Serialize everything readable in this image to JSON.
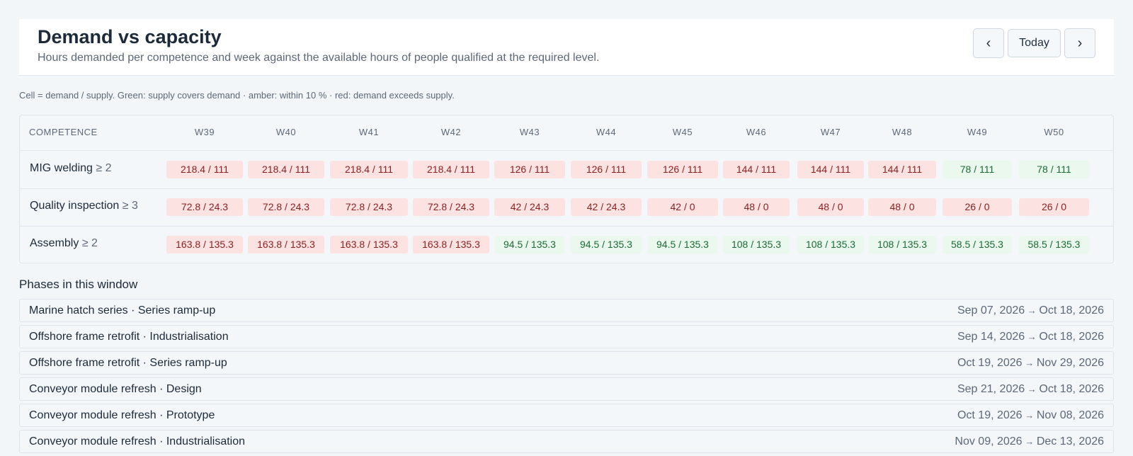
{
  "header": {
    "title": "Demand vs capacity",
    "subtitle": "Hours demanded per competence and week against the available hours of people qualified at the required level.",
    "prev_icon": "chevron-left-icon",
    "today_label": "Today",
    "next_icon": "chevron-right-icon"
  },
  "legend": "Cell = demand / supply. Green: supply covers demand · amber: within 10 % · red: demand exceeds supply.",
  "colors": {
    "red_bg": "#fde2e2",
    "red_text": "#8a1f1f",
    "green_bg": "#eaf8ee",
    "green_text": "#1b6b35"
  },
  "grid": {
    "first_header": "COMPETENCE",
    "weeks": [
      "W39",
      "W40",
      "W41",
      "W42",
      "W43",
      "W44",
      "W45",
      "W46",
      "W47",
      "W48",
      "W49",
      "W50"
    ],
    "rows": [
      {
        "name": "MIG welding",
        "level": "≥ 2",
        "cells": [
          {
            "v": "218.4 / 111",
            "s": "red"
          },
          {
            "v": "218.4 / 111",
            "s": "red"
          },
          {
            "v": "218.4 / 111",
            "s": "red"
          },
          {
            "v": "218.4 / 111",
            "s": "red"
          },
          {
            "v": "126 / 111",
            "s": "red"
          },
          {
            "v": "126 / 111",
            "s": "red"
          },
          {
            "v": "126 / 111",
            "s": "red"
          },
          {
            "v": "144 / 111",
            "s": "red"
          },
          {
            "v": "144 / 111",
            "s": "red"
          },
          {
            "v": "144 / 111",
            "s": "red"
          },
          {
            "v": "78 / 111",
            "s": "green"
          },
          {
            "v": "78 / 111",
            "s": "green"
          }
        ]
      },
      {
        "name": "Quality inspection",
        "level": "≥ 3",
        "cells": [
          {
            "v": "72.8 / 24.3",
            "s": "red"
          },
          {
            "v": "72.8 / 24.3",
            "s": "red"
          },
          {
            "v": "72.8 / 24.3",
            "s": "red"
          },
          {
            "v": "72.8 / 24.3",
            "s": "red"
          },
          {
            "v": "42 / 24.3",
            "s": "red"
          },
          {
            "v": "42 / 24.3",
            "s": "red"
          },
          {
            "v": "42 / 0",
            "s": "red"
          },
          {
            "v": "48 / 0",
            "s": "red"
          },
          {
            "v": "48 / 0",
            "s": "red"
          },
          {
            "v": "48 / 0",
            "s": "red"
          },
          {
            "v": "26 / 0",
            "s": "red"
          },
          {
            "v": "26 / 0",
            "s": "red"
          }
        ]
      },
      {
        "name": "Assembly",
        "level": "≥ 2",
        "cells": [
          {
            "v": "163.8 / 135.3",
            "s": "red"
          },
          {
            "v": "163.8 / 135.3",
            "s": "red"
          },
          {
            "v": "163.8 / 135.3",
            "s": "red"
          },
          {
            "v": "163.8 / 135.3",
            "s": "red"
          },
          {
            "v": "94.5 / 135.3",
            "s": "green"
          },
          {
            "v": "94.5 / 135.3",
            "s": "green"
          },
          {
            "v": "94.5 / 135.3",
            "s": "green"
          },
          {
            "v": "108 / 135.3",
            "s": "green"
          },
          {
            "v": "108 / 135.3",
            "s": "green"
          },
          {
            "v": "108 / 135.3",
            "s": "green"
          },
          {
            "v": "58.5 / 135.3",
            "s": "green"
          },
          {
            "v": "58.5 / 135.3",
            "s": "green"
          }
        ]
      }
    ]
  },
  "phases": {
    "title": "Phases in this window",
    "items": [
      {
        "name": "Marine hatch series · Series ramp-up",
        "start": "Sep 07, 2026",
        "end": "Oct 18, 2026"
      },
      {
        "name": "Offshore frame retrofit · Industrialisation",
        "start": "Sep 14, 2026",
        "end": "Oct 18, 2026"
      },
      {
        "name": "Offshore frame retrofit · Series ramp-up",
        "start": "Oct 19, 2026",
        "end": "Nov 29, 2026"
      },
      {
        "name": "Conveyor module refresh · Design",
        "start": "Sep 21, 2026",
        "end": "Oct 18, 2026"
      },
      {
        "name": "Conveyor module refresh · Prototype",
        "start": "Oct 19, 2026",
        "end": "Nov 08, 2026"
      },
      {
        "name": "Conveyor module refresh · Industrialisation",
        "start": "Nov 09, 2026",
        "end": "Dec 13, 2026"
      }
    ]
  }
}
